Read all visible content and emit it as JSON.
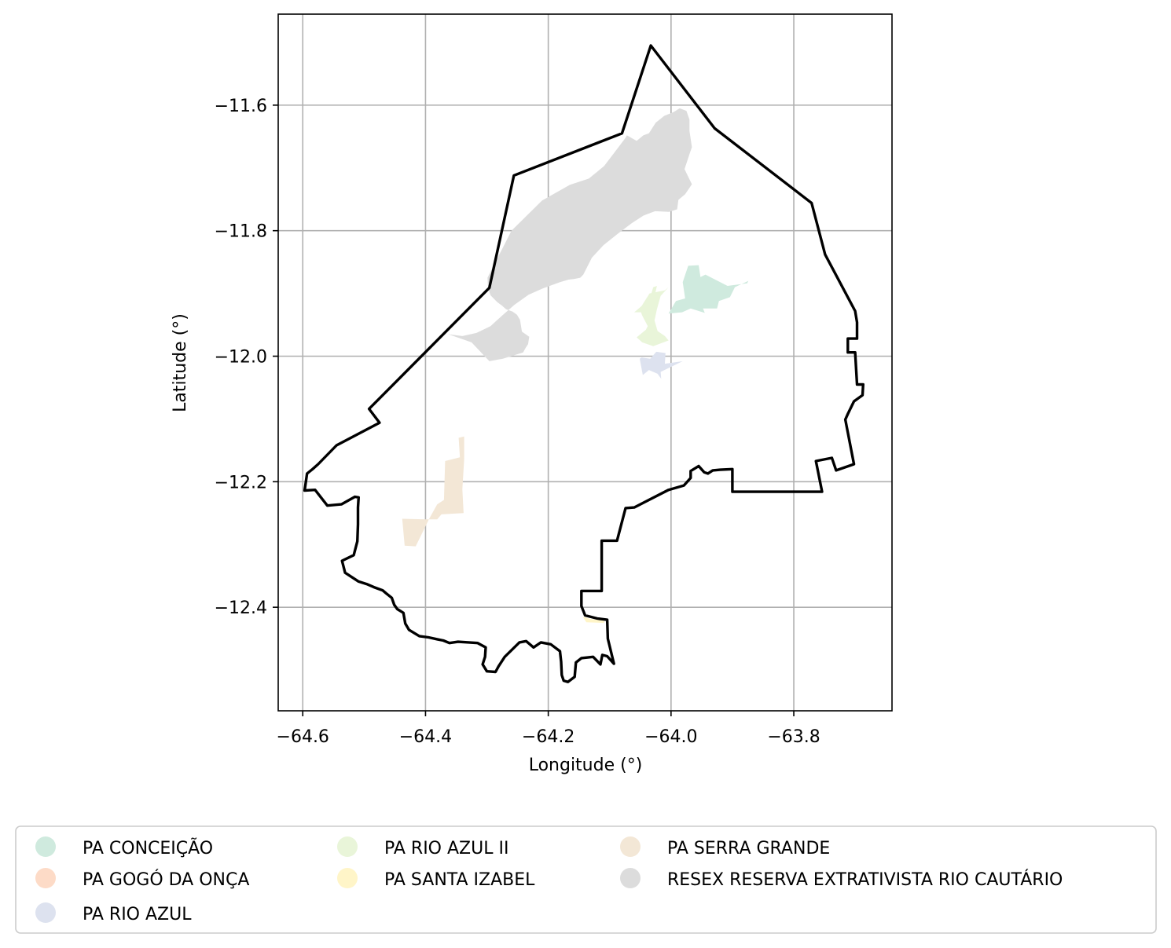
{
  "chart_data": {
    "type": "map",
    "xlabel": "Longitude (°)",
    "ylabel": "Latitude (°)",
    "xlim": [
      -64.64,
      -63.64
    ],
    "ylim": [
      -12.565,
      -11.455
    ],
    "xticks": [
      {
        "value": -64.6,
        "label": "−64.6"
      },
      {
        "value": -64.4,
        "label": "−64.4"
      },
      {
        "value": -64.2,
        "label": "−64.2"
      },
      {
        "value": -64.0,
        "label": "−64.0"
      },
      {
        "value": -63.8,
        "label": "−63.8"
      }
    ],
    "yticks": [
      {
        "value": -11.6,
        "label": "−11.6"
      },
      {
        "value": -11.8,
        "label": "−11.8"
      },
      {
        "value": -12.0,
        "label": "−12.0"
      },
      {
        "value": -12.2,
        "label": "−12.2"
      },
      {
        "value": -12.4,
        "label": "−12.4"
      }
    ],
    "grid": true,
    "legend_position": "bottom, outside plot, 3 columns",
    "boundary_color": "#000000",
    "boundary": [
      [
        -64.597,
        -12.214
      ],
      [
        -64.593,
        -12.187
      ],
      [
        -64.584,
        -12.18
      ],
      [
        -64.575,
        -12.172
      ],
      [
        -64.545,
        -12.142
      ],
      [
        -64.475,
        -12.106
      ],
      [
        -64.492,
        -12.084
      ],
      [
        -64.296,
        -11.891
      ],
      [
        -64.256,
        -11.712
      ],
      [
        -64.08,
        -11.645
      ],
      [
        -64.033,
        -11.505
      ],
      [
        -63.929,
        -11.637
      ],
      [
        -63.771,
        -11.756
      ],
      [
        -63.749,
        -11.838
      ],
      [
        -63.7,
        -11.928
      ],
      [
        -63.697,
        -11.946
      ],
      [
        -63.697,
        -11.972
      ],
      [
        -63.712,
        -11.972
      ],
      [
        -63.712,
        -11.994
      ],
      [
        -63.7,
        -11.994
      ],
      [
        -63.697,
        -12.045
      ],
      [
        -63.687,
        -12.045
      ],
      [
        -63.688,
        -12.062
      ],
      [
        -63.702,
        -12.072
      ],
      [
        -63.712,
        -12.092
      ],
      [
        -63.716,
        -12.101
      ],
      [
        -63.702,
        -12.172
      ],
      [
        -63.731,
        -12.182
      ],
      [
        -63.738,
        -12.162
      ],
      [
        -63.764,
        -12.167
      ],
      [
        -63.754,
        -12.216
      ],
      [
        -63.9,
        -12.216
      ],
      [
        -63.9,
        -12.18
      ],
      [
        -63.92,
        -12.181
      ],
      [
        -63.932,
        -12.182
      ],
      [
        -63.94,
        -12.187
      ],
      [
        -63.946,
        -12.185
      ],
      [
        -63.955,
        -12.175
      ],
      [
        -63.968,
        -12.183
      ],
      [
        -63.968,
        -12.194
      ],
      [
        -63.979,
        -12.206
      ],
      [
        -64.004,
        -12.213
      ],
      [
        -64.046,
        -12.234
      ],
      [
        -64.06,
        -12.241
      ],
      [
        -64.074,
        -12.242
      ],
      [
        -64.088,
        -12.294
      ],
      [
        -64.113,
        -12.294
      ],
      [
        -64.113,
        -12.374
      ],
      [
        -64.146,
        -12.374
      ],
      [
        -64.146,
        -12.398
      ],
      [
        -64.14,
        -12.413
      ],
      [
        -64.12,
        -12.418
      ],
      [
        -64.104,
        -12.42
      ],
      [
        -64.103,
        -12.45
      ],
      [
        -64.093,
        -12.49
      ],
      [
        -64.104,
        -12.478
      ],
      [
        -64.112,
        -12.476
      ],
      [
        -64.115,
        -12.491
      ],
      [
        -64.127,
        -12.479
      ],
      [
        -64.146,
        -12.481
      ],
      [
        -64.155,
        -12.488
      ],
      [
        -64.157,
        -12.511
      ],
      [
        -64.168,
        -12.519
      ],
      [
        -64.175,
        -12.517
      ],
      [
        -64.178,
        -12.508
      ],
      [
        -64.179,
        -12.487
      ],
      [
        -64.181,
        -12.47
      ],
      [
        -64.196,
        -12.459
      ],
      [
        -64.212,
        -12.456
      ],
      [
        -64.224,
        -12.464
      ],
      [
        -64.236,
        -12.454
      ],
      [
        -64.247,
        -12.456
      ],
      [
        -64.271,
        -12.479
      ],
      [
        -64.281,
        -12.494
      ],
      [
        -64.286,
        -12.503
      ],
      [
        -64.3,
        -12.502
      ],
      [
        -64.307,
        -12.491
      ],
      [
        -64.303,
        -12.479
      ],
      [
        -64.302,
        -12.464
      ],
      [
        -64.315,
        -12.457
      ],
      [
        -64.347,
        -12.455
      ],
      [
        -64.361,
        -12.457
      ],
      [
        -64.371,
        -12.453
      ],
      [
        -64.381,
        -12.451
      ],
      [
        -64.395,
        -12.448
      ],
      [
        -64.41,
        -12.446
      ],
      [
        -64.427,
        -12.436
      ],
      [
        -64.433,
        -12.426
      ],
      [
        -64.436,
        -12.409
      ],
      [
        -64.446,
        -12.403
      ],
      [
        -64.451,
        -12.396
      ],
      [
        -64.455,
        -12.385
      ],
      [
        -64.464,
        -12.378
      ],
      [
        -64.47,
        -12.373
      ],
      [
        -64.484,
        -12.368
      ],
      [
        -64.496,
        -12.363
      ],
      [
        -64.509,
        -12.359
      ],
      [
        -64.52,
        -12.352
      ],
      [
        -64.531,
        -12.345
      ],
      [
        -64.536,
        -12.326
      ],
      [
        -64.517,
        -12.317
      ],
      [
        -64.511,
        -12.295
      ],
      [
        -64.51,
        -12.268
      ],
      [
        -64.51,
        -12.241
      ],
      [
        -64.509,
        -12.225
      ],
      [
        -64.515,
        -12.224
      ],
      [
        -64.537,
        -12.236
      ],
      [
        -64.56,
        -12.238
      ],
      [
        -64.58,
        -12.213
      ],
      [
        -64.597,
        -12.214
      ]
    ],
    "series": [
      {
        "name": "PA CONCEIÇÃO",
        "color": "#cfeade",
        "polygons": [
          [
            [
              -63.972,
              -11.856
            ],
            [
              -63.981,
              -11.882
            ],
            [
              -63.977,
              -11.908
            ],
            [
              -63.992,
              -11.912
            ],
            [
              -64.004,
              -11.932
            ],
            [
              -63.982,
              -11.93
            ],
            [
              -63.968,
              -11.924
            ],
            [
              -63.945,
              -11.931
            ],
            [
              -63.948,
              -11.924
            ],
            [
              -63.925,
              -11.924
            ],
            [
              -63.922,
              -11.912
            ],
            [
              -63.904,
              -11.906
            ],
            [
              -63.896,
              -11.89
            ],
            [
              -63.874,
              -11.88
            ],
            [
              -63.876,
              -11.884
            ],
            [
              -63.908,
              -11.888
            ],
            [
              -63.944,
              -11.87
            ],
            [
              -63.952,
              -11.874
            ],
            [
              -63.955,
              -11.855
            ]
          ]
        ]
      },
      {
        "name": "PA GOGÓ DA ONÇA",
        "color": "#fddbc7",
        "polygons": []
      },
      {
        "name": "PA RIO AZUL",
        "color": "#dde2ef",
        "polygons": [
          [
            [
              -64.01,
              -12.012
            ],
            [
              -64.009,
              -11.995
            ],
            [
              -64.024,
              -11.993
            ],
            [
              -64.034,
              -12.004
            ],
            [
              -64.048,
              -12.002
            ],
            [
              -64.051,
              -12.004
            ],
            [
              -64.046,
              -12.03
            ],
            [
              -64.036,
              -12.022
            ],
            [
              -64.022,
              -12.028
            ],
            [
              -64.016,
              -12.036
            ],
            [
              -64.017,
              -12.025
            ],
            [
              -63.981,
              -12.008
            ]
          ]
        ]
      },
      {
        "name": "PA RIO AZUL II",
        "color": "#e9f5d9",
        "polygons": [
          [
            [
              -64.004,
              -11.89
            ],
            [
              -64.01,
              -11.895
            ],
            [
              -64.035,
              -11.9
            ],
            [
              -64.048,
              -11.92
            ],
            [
              -64.06,
              -11.93
            ],
            [
              -64.049,
              -11.93
            ],
            [
              -64.047,
              -11.935
            ],
            [
              -64.038,
              -11.952
            ],
            [
              -64.041,
              -11.958
            ],
            [
              -64.056,
              -11.97
            ],
            [
              -64.047,
              -11.978
            ],
            [
              -64.029,
              -11.984
            ],
            [
              -64.004,
              -11.975
            ],
            [
              -64.01,
              -11.968
            ],
            [
              -64.022,
              -11.96
            ],
            [
              -64.027,
              -11.943
            ],
            [
              -64.023,
              -11.925
            ],
            [
              -64.017,
              -11.904
            ]
          ],
          [
            [
              -64.023,
              -11.888
            ],
            [
              -64.027,
              -11.905
            ],
            [
              -64.035,
              -11.915
            ],
            [
              -64.04,
              -11.908
            ],
            [
              -64.032,
              -11.9
            ],
            [
              -64.029,
              -11.89
            ]
          ]
        ]
      },
      {
        "name": "PA SANTA IZABEL",
        "color": "#fff5c8",
        "polygons": [
          [
            [
              -64.144,
              -12.415
            ],
            [
              -64.13,
              -12.419
            ],
            [
              -64.109,
              -12.421
            ],
            [
              -64.109,
              -12.425
            ],
            [
              -64.138,
              -12.424
            ]
          ]
        ]
      },
      {
        "name": "PA SERRA GRANDE",
        "color": "#f3e7d6",
        "polygons": [
          [
            [
              -64.438,
              -12.259
            ],
            [
              -64.434,
              -12.302
            ],
            [
              -64.416,
              -12.303
            ],
            [
              -64.394,
              -12.259
            ],
            [
              -64.381,
              -12.236
            ],
            [
              -64.37,
              -12.229
            ],
            [
              -64.368,
              -12.167
            ],
            [
              -64.344,
              -12.161
            ],
            [
              -64.346,
              -12.13
            ],
            [
              -64.337,
              -12.128
            ],
            [
              -64.337,
              -12.165
            ],
            [
              -64.34,
              -12.212
            ],
            [
              -64.338,
              -12.25
            ],
            [
              -64.374,
              -12.252
            ],
            [
              -64.381,
              -12.26
            ],
            [
              -64.4,
              -12.26
            ]
          ]
        ]
      },
      {
        "name": "RESEX RESERVA EXTRATIVISTA RIO CAUTÁRIO",
        "color": "#dcdcdc",
        "polygons": [
          [
            [
              -64.363,
              -11.965
            ],
            [
              -64.325,
              -11.978
            ],
            [
              -64.296,
              -12.008
            ],
            [
              -64.274,
              -12.004
            ],
            [
              -64.241,
              -11.994
            ],
            [
              -64.237,
              -11.987
            ],
            [
              -64.233,
              -11.981
            ],
            [
              -64.231,
              -11.969
            ],
            [
              -64.243,
              -11.961
            ],
            [
              -64.246,
              -11.942
            ],
            [
              -64.251,
              -11.934
            ],
            [
              -64.258,
              -11.929
            ],
            [
              -64.269,
              -11.925
            ],
            [
              -64.276,
              -11.919
            ],
            [
              -64.283,
              -11.914
            ],
            [
              -64.294,
              -11.903
            ],
            [
              -64.298,
              -11.892
            ],
            [
              -64.299,
              -11.875
            ],
            [
              -64.26,
              -11.8
            ],
            [
              -64.21,
              -11.752
            ],
            [
              -64.165,
              -11.727
            ],
            [
              -64.134,
              -11.717
            ],
            [
              -64.109,
              -11.697
            ],
            [
              -64.084,
              -11.665
            ],
            [
              -64.074,
              -11.652
            ],
            [
              -64.072,
              -11.648
            ],
            [
              -64.056,
              -11.657
            ],
            [
              -64.045,
              -11.648
            ],
            [
              -64.036,
              -11.645
            ],
            [
              -64.025,
              -11.628
            ],
            [
              -64.011,
              -11.617
            ],
            [
              -63.996,
              -11.611
            ],
            [
              -63.986,
              -11.605
            ],
            [
              -63.975,
              -11.609
            ],
            [
              -63.97,
              -11.623
            ],
            [
              -63.97,
              -11.641
            ],
            [
              -63.966,
              -11.667
            ],
            [
              -63.97,
              -11.678
            ],
            [
              -63.978,
              -11.702
            ],
            [
              -63.966,
              -11.726
            ],
            [
              -63.977,
              -11.742
            ],
            [
              -63.988,
              -11.751
            ],
            [
              -63.99,
              -11.766
            ],
            [
              -64.003,
              -11.77
            ],
            [
              -64.026,
              -11.769
            ],
            [
              -64.045,
              -11.776
            ],
            [
              -64.064,
              -11.788
            ],
            [
              -64.087,
              -11.805
            ],
            [
              -64.11,
              -11.823
            ],
            [
              -64.129,
              -11.843
            ],
            [
              -64.143,
              -11.87
            ],
            [
              -64.148,
              -11.875
            ],
            [
              -64.158,
              -11.877
            ],
            [
              -64.167,
              -11.878
            ],
            [
              -64.181,
              -11.882
            ],
            [
              -64.209,
              -11.892
            ],
            [
              -64.232,
              -11.902
            ],
            [
              -64.255,
              -11.918
            ],
            [
              -64.275,
              -11.935
            ],
            [
              -64.294,
              -11.952
            ],
            [
              -64.317,
              -11.963
            ],
            [
              -64.34,
              -11.968
            ]
          ]
        ]
      }
    ]
  }
}
